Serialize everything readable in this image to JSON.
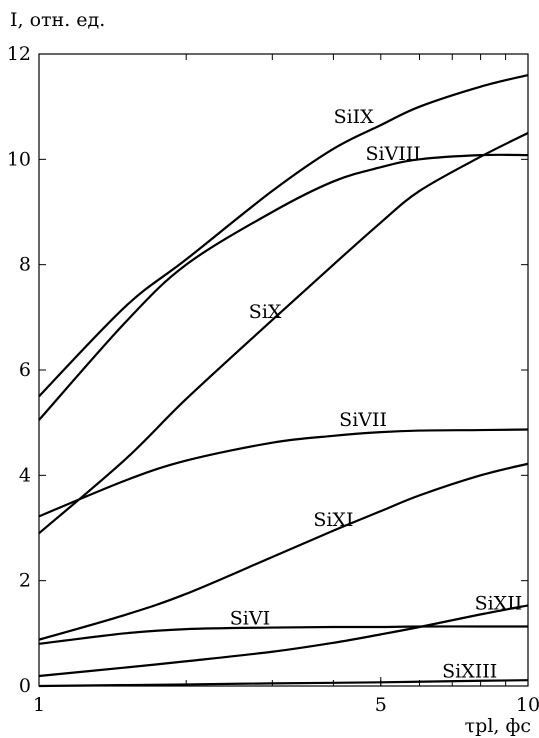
{
  "chart_data": {
    "type": "line",
    "ylabel": "I, отн. ед.",
    "xlabel": "τpl, фс",
    "x_scale": "log",
    "xlim": [
      1,
      10
    ],
    "ylim": [
      0,
      12
    ],
    "x_ticks": [
      {
        "value": 1,
        "label": "1"
      },
      {
        "value": 5,
        "label": "5"
      },
      {
        "value": 10,
        "label": "10"
      }
    ],
    "y_ticks": [
      {
        "value": 0,
        "label": "0"
      },
      {
        "value": 2,
        "label": "2"
      },
      {
        "value": 4,
        "label": "4"
      },
      {
        "value": 6,
        "label": "6"
      },
      {
        "value": 8,
        "label": "8"
      },
      {
        "value": 10,
        "label": "10"
      },
      {
        "value": 12,
        "label": "12"
      }
    ],
    "grid": false,
    "legend": "none (series labeled inline)",
    "line_color": "#000000",
    "series": [
      {
        "name": "SiIX",
        "label_at": [
          4.4,
          10.8
        ],
        "points": [
          [
            1,
            5.5
          ],
          [
            1.5,
            7.2
          ],
          [
            2,
            8.1
          ],
          [
            3,
            9.4
          ],
          [
            4,
            10.2
          ],
          [
            5,
            10.65
          ],
          [
            6,
            11.0
          ],
          [
            8,
            11.38
          ],
          [
            10,
            11.6
          ]
        ]
      },
      {
        "name": "SiVIII",
        "label_at": [
          5.3,
          10.1
        ],
        "points": [
          [
            1,
            5.05
          ],
          [
            1.5,
            6.9
          ],
          [
            2,
            8.0
          ],
          [
            3,
            9.0
          ],
          [
            4,
            9.58
          ],
          [
            5,
            9.85
          ],
          [
            6,
            10.0
          ],
          [
            8,
            10.08
          ],
          [
            10,
            10.08
          ]
        ]
      },
      {
        "name": "SiX",
        "label_at": [
          2.9,
          7.1
        ],
        "points": [
          [
            1,
            2.9
          ],
          [
            1.5,
            4.3
          ],
          [
            2,
            5.45
          ],
          [
            3,
            6.95
          ],
          [
            4,
            8.0
          ],
          [
            5,
            8.8
          ],
          [
            6,
            9.4
          ],
          [
            8,
            10.05
          ],
          [
            10,
            10.5
          ]
        ]
      },
      {
        "name": "SiVII",
        "label_at": [
          4.6,
          5.05
        ],
        "points": [
          [
            1,
            3.22
          ],
          [
            1.5,
            3.9
          ],
          [
            2,
            4.28
          ],
          [
            3,
            4.62
          ],
          [
            4,
            4.75
          ],
          [
            5,
            4.82
          ],
          [
            6,
            4.85
          ],
          [
            8,
            4.86
          ],
          [
            10,
            4.87
          ]
        ]
      },
      {
        "name": "SiXI",
        "label_at": [
          4.0,
          3.15
        ],
        "points": [
          [
            1,
            0.88
          ],
          [
            1.5,
            1.35
          ],
          [
            2,
            1.75
          ],
          [
            3,
            2.45
          ],
          [
            4,
            2.95
          ],
          [
            5,
            3.32
          ],
          [
            6,
            3.62
          ],
          [
            8,
            4.0
          ],
          [
            10,
            4.22
          ]
        ]
      },
      {
        "name": "SiVI",
        "label_at": [
          2.7,
          1.28
        ],
        "points": [
          [
            1,
            0.8
          ],
          [
            1.5,
            1.0
          ],
          [
            2,
            1.08
          ],
          [
            3,
            1.11
          ],
          [
            4,
            1.12
          ],
          [
            5,
            1.12
          ],
          [
            6,
            1.13
          ],
          [
            8,
            1.13
          ],
          [
            10,
            1.13
          ]
        ]
      },
      {
        "name": "SiXII",
        "label_at": [
          8.7,
          1.57
        ],
        "points": [
          [
            1,
            0.19
          ],
          [
            1.5,
            0.35
          ],
          [
            2,
            0.47
          ],
          [
            3,
            0.65
          ],
          [
            4,
            0.82
          ],
          [
            5,
            0.98
          ],
          [
            6,
            1.12
          ],
          [
            8,
            1.36
          ],
          [
            10,
            1.53
          ]
        ]
      },
      {
        "name": "SiXIII",
        "label_at": [
          7.6,
          0.28
        ],
        "points": [
          [
            1,
            0.0
          ],
          [
            2,
            0.03
          ],
          [
            3,
            0.05
          ],
          [
            5,
            0.07
          ],
          [
            8,
            0.1
          ],
          [
            10,
            0.11
          ]
        ]
      }
    ]
  }
}
